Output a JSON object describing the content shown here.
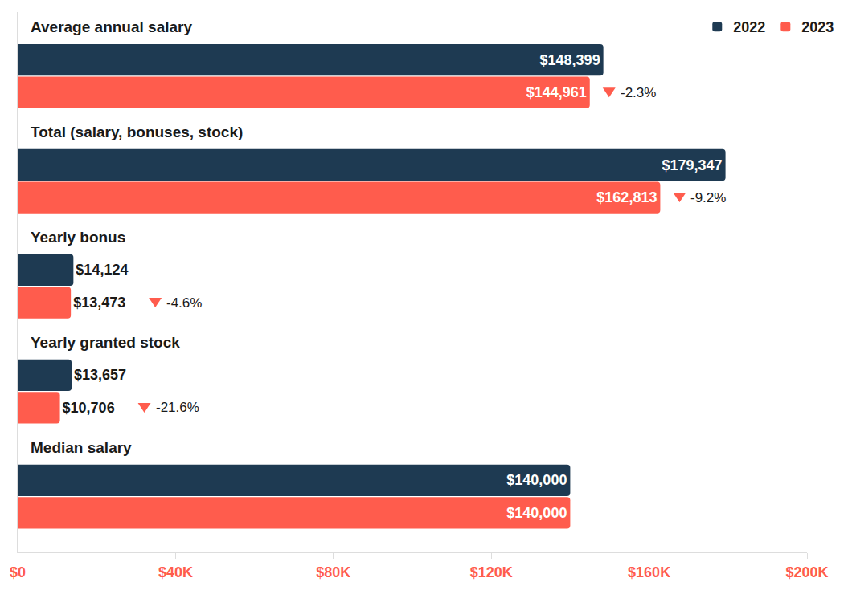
{
  "chart_data": {
    "type": "bar",
    "orientation": "horizontal",
    "categories": [
      "Average annual salary",
      "Total (salary, bonuses, stock)",
      "Yearly bonus",
      "Yearly granted stock",
      "Median salary"
    ],
    "series": [
      {
        "name": "2022",
        "color": "#1e3a52",
        "values": [
          148399,
          179347,
          14124,
          13657,
          140000
        ],
        "value_labels": [
          "$148,399",
          "$179,347",
          "$14,124",
          "$13,657",
          "$140,000"
        ]
      },
      {
        "name": "2023",
        "color": "#ff5c4d",
        "values": [
          144961,
          162813,
          13473,
          10706,
          140000
        ],
        "value_labels": [
          "$144,961",
          "$162,813",
          "$13,473",
          "$10,706",
          "$140,000"
        ],
        "change_labels": [
          "-2.3%",
          "-9.2%",
          "-4.6%",
          "-21.6%",
          null
        ]
      }
    ],
    "xlim": [
      0,
      200000
    ],
    "xticks": [
      {
        "value": 0,
        "label": "$0"
      },
      {
        "value": 40000,
        "label": "$40K"
      },
      {
        "value": 80000,
        "label": "$80K"
      },
      {
        "value": 120000,
        "label": "$120K"
      },
      {
        "value": 160000,
        "label": "$160K"
      },
      {
        "value": 200000,
        "label": "$200K"
      }
    ],
    "data_labels": true,
    "legend": "top right",
    "grid": false,
    "tick_labels": "x"
  }
}
